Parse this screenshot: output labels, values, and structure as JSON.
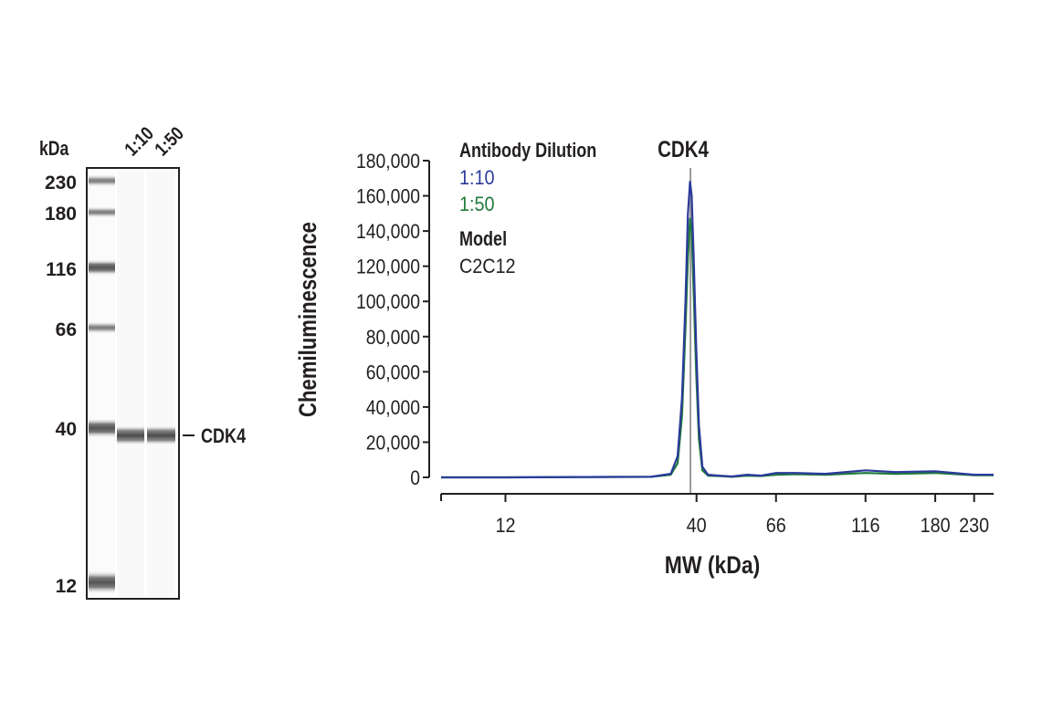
{
  "blot": {
    "unit_label": "kDa",
    "lane_labels": [
      "1:10",
      "1:50"
    ],
    "markers": [
      "230",
      "180",
      "116",
      "66",
      "40",
      "12"
    ],
    "band_label": "CDK4"
  },
  "chart_data": {
    "type": "line",
    "title": "CDK4",
    "xlabel": "MW (kDa)",
    "ylabel": "Chemiluminescence",
    "xscale": "log",
    "xlim": [
      8,
      260
    ],
    "ylim": [
      0,
      180000
    ],
    "x_ticks": [
      "12",
      "40",
      "66",
      "116",
      "180",
      "230"
    ],
    "y_ticks": [
      "0",
      "20,000",
      "40,000",
      "60,000",
      "80,000",
      "100,000",
      "120,000",
      "140,000",
      "160,000",
      "180,000"
    ],
    "reference_line_x": 38.5,
    "legend": {
      "heading": "Antibody Dilution",
      "entries": [
        "1:10",
        "1:50"
      ],
      "model_heading": "Model",
      "model_value": "C2C12"
    },
    "series": [
      {
        "name": "1:10",
        "color": "#2b3a9b",
        "x": [
          8,
          12,
          20,
          30,
          34,
          35.5,
          36.5,
          37.3,
          37.9,
          38.4,
          38.8,
          39.3,
          39.9,
          40.6,
          41.5,
          43,
          46,
          50,
          55,
          60,
          66,
          75,
          90,
          116,
          140,
          180,
          230,
          260
        ],
        "y": [
          0,
          0,
          200,
          300,
          2000,
          12000,
          45000,
          100000,
          150000,
          168000,
          160000,
          125000,
          75000,
          30000,
          6000,
          1500,
          1000,
          500,
          1500,
          1000,
          2500,
          2500,
          2000,
          4000,
          3000,
          3500,
          1500,
          1500
        ]
      },
      {
        "name": "1:50",
        "color": "#1f7a3c",
        "x": [
          8,
          12,
          20,
          30,
          34,
          35.5,
          36.5,
          37.3,
          37.9,
          38.4,
          38.8,
          39.3,
          39.9,
          40.6,
          41.5,
          43,
          46,
          50,
          55,
          60,
          66,
          75,
          90,
          116,
          140,
          180,
          230,
          260
        ],
        "y": [
          0,
          0,
          200,
          300,
          1500,
          8000,
          35000,
          85000,
          125000,
          147000,
          140000,
          105000,
          60000,
          22000,
          4000,
          1000,
          800,
          300,
          1000,
          800,
          1500,
          1800,
          1500,
          2500,
          2000,
          2500,
          1200,
          1200
        ]
      }
    ]
  }
}
